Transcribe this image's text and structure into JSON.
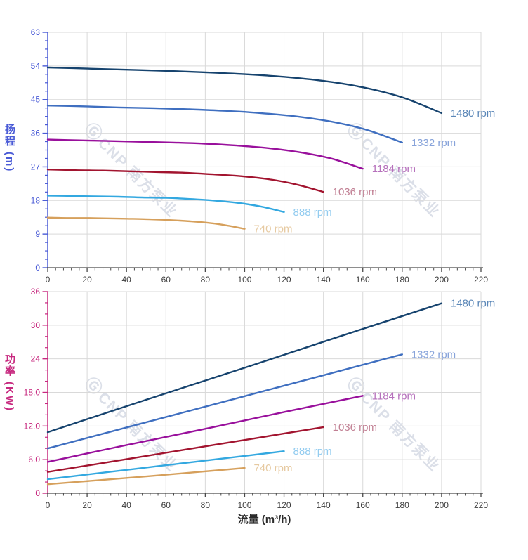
{
  "x_axis": {
    "label": "流量 (m³/h)",
    "tick_values": [
      0,
      20,
      40,
      60,
      80,
      100,
      120,
      140,
      160,
      180,
      200,
      220
    ],
    "tick_labels": [
      "0",
      "20",
      "40",
      "60",
      "80",
      "100",
      "120",
      "140",
      "160",
      "180",
      "200",
      "220"
    ],
    "minor_step": 4,
    "range": [
      0,
      220
    ],
    "color": "#3f3f3f"
  },
  "watermark": {
    "logo": "Ⓖ",
    "text": "CNP 南方泵业"
  },
  "chart_data": [
    {
      "type": "line",
      "name": "head-curves",
      "y_title": "扬程",
      "y_unit": "(m)",
      "ylim": [
        0,
        63
      ],
      "y_tick_values": [
        0,
        9,
        18,
        27,
        36,
        45,
        54,
        63
      ],
      "y_tick_labels": [
        "0",
        "9",
        "18",
        "27",
        "36",
        "45",
        "54",
        "63"
      ],
      "y_minor_step": 2.25,
      "axis_color": "#4a5bd6",
      "grid": "on",
      "legend_position": "curve-end-labels",
      "series": [
        {
          "name": "1480 rpm",
          "rpm": 1480,
          "color": "#16436e",
          "label_color": "#5b87b8",
          "x": [
            0,
            20,
            40,
            60,
            80,
            100,
            120,
            140,
            160,
            180,
            200
          ],
          "y": [
            53.6,
            53.3,
            53.0,
            52.7,
            52.3,
            51.8,
            51.1,
            50.0,
            48.3,
            45.6,
            41.4
          ]
        },
        {
          "name": "1332 rpm",
          "rpm": 1332,
          "color": "#3f6fc0",
          "label_color": "#87a3da",
          "x": [
            0,
            18,
            36,
            54,
            72,
            90,
            108,
            126,
            144,
            162,
            180
          ],
          "y": [
            43.4,
            43.2,
            42.9,
            42.7,
            42.4,
            42.0,
            41.4,
            40.5,
            39.1,
            36.9,
            33.5
          ]
        },
        {
          "name": "1184 rpm",
          "rpm": 1184,
          "color": "#99109c",
          "label_color": "#b671bc",
          "x": [
            0,
            16,
            32,
            48,
            64,
            80,
            96,
            112,
            128,
            144,
            160
          ],
          "y": [
            34.3,
            34.1,
            33.9,
            33.7,
            33.5,
            33.2,
            32.7,
            32.0,
            30.9,
            29.2,
            26.5
          ]
        },
        {
          "name": "1036 rpm",
          "rpm": 1036,
          "color": "#a2142f",
          "label_color": "#c17f93",
          "x": [
            0,
            14,
            28,
            42,
            56,
            70,
            84,
            98,
            112,
            126,
            140
          ],
          "y": [
            26.3,
            26.1,
            26.0,
            25.8,
            25.6,
            25.4,
            25.0,
            24.5,
            23.7,
            22.3,
            20.3
          ]
        },
        {
          "name": "888 rpm",
          "rpm": 888,
          "color": "#33a8e0",
          "label_color": "#93ccf0",
          "x": [
            0,
            12,
            24,
            36,
            48,
            60,
            72,
            84,
            96,
            108,
            120
          ],
          "y": [
            19.3,
            19.2,
            19.1,
            19.0,
            18.8,
            18.7,
            18.4,
            18.0,
            17.4,
            16.4,
            14.9
          ]
        },
        {
          "name": "740 rpm",
          "rpm": 740,
          "color": "#d6a05c",
          "label_color": "#e6c9a0",
          "x": [
            0,
            10,
            20,
            30,
            40,
            50,
            60,
            70,
            80,
            90,
            100
          ],
          "y": [
            13.4,
            13.3,
            13.3,
            13.2,
            13.1,
            13.0,
            12.8,
            12.5,
            12.1,
            11.4,
            10.4
          ]
        }
      ]
    },
    {
      "type": "line",
      "name": "power-curves",
      "y_title": "功率",
      "y_unit": "(KW)",
      "ylim": [
        0,
        36
      ],
      "y_tick_values": [
        0,
        6,
        12,
        18,
        24,
        30,
        36
      ],
      "y_tick_labels": [
        "0",
        "6.0",
        "12.0",
        "18.0",
        "24",
        "30",
        "36"
      ],
      "y_minor_step": 2,
      "axis_color": "#c7297f",
      "grid": "on",
      "legend_position": "curve-end-labels",
      "series": [
        {
          "name": "1480 rpm",
          "rpm": 1480,
          "color": "#16436e",
          "label_color": "#5b87b8",
          "x": [
            0,
            50,
            100,
            150,
            200
          ],
          "y": [
            10.9,
            16.7,
            22.4,
            28.2,
            33.9
          ]
        },
        {
          "name": "1332 rpm",
          "rpm": 1332,
          "color": "#3f6fc0",
          "label_color": "#87a3da",
          "x": [
            0,
            45,
            90,
            135,
            180
          ],
          "y": [
            8.0,
            12.2,
            16.4,
            20.6,
            24.8
          ]
        },
        {
          "name": "1184 rpm",
          "rpm": 1184,
          "color": "#99109c",
          "label_color": "#b671bc",
          "x": [
            0,
            40,
            80,
            120,
            160
          ],
          "y": [
            5.6,
            8.6,
            11.5,
            14.5,
            17.4
          ]
        },
        {
          "name": "1036 rpm",
          "rpm": 1036,
          "color": "#a2142f",
          "label_color": "#c17f93",
          "x": [
            0,
            35,
            70,
            105,
            140
          ],
          "y": [
            3.8,
            5.8,
            7.8,
            9.8,
            11.8
          ]
        },
        {
          "name": "888 rpm",
          "rpm": 888,
          "color": "#33a8e0",
          "label_color": "#93ccf0",
          "x": [
            0,
            30,
            60,
            90,
            120
          ],
          "y": [
            2.5,
            3.75,
            5.0,
            6.25,
            7.5
          ]
        },
        {
          "name": "740 rpm",
          "rpm": 740,
          "color": "#d6a05c",
          "label_color": "#e6c9a0",
          "x": [
            0,
            25,
            50,
            75,
            100
          ],
          "y": [
            1.6,
            2.3,
            3.0,
            3.75,
            4.5
          ]
        }
      ]
    }
  ]
}
